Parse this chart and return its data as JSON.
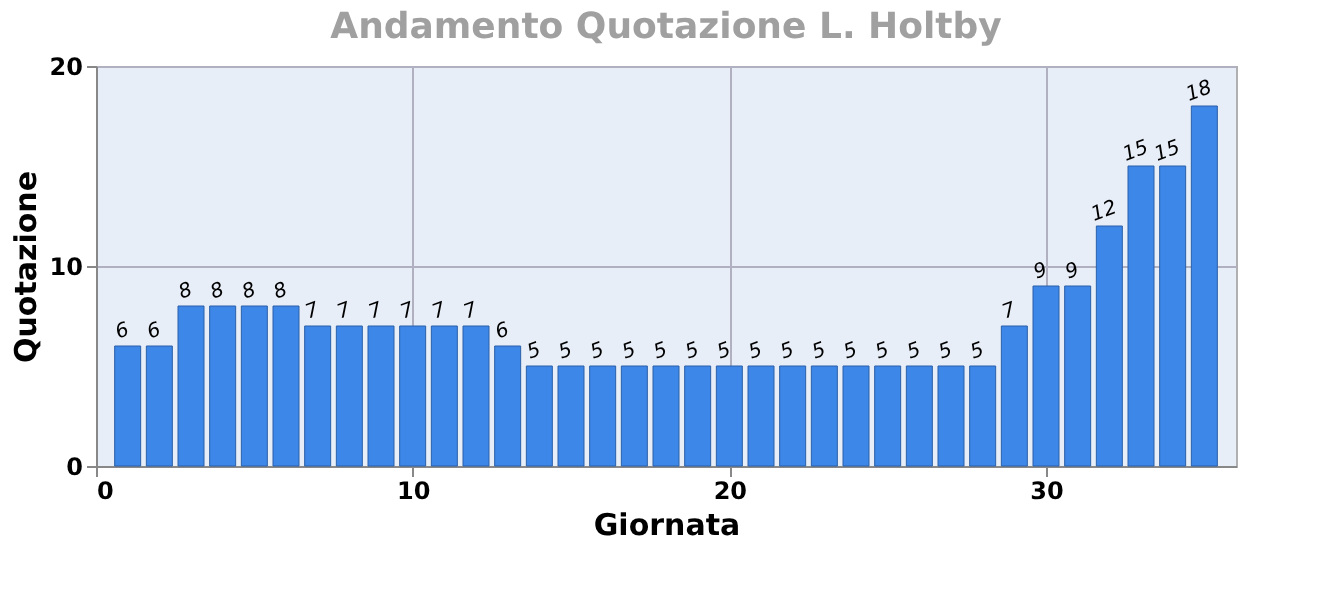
{
  "chart_data": {
    "type": "bar",
    "title": "Andamento Quotazione L. Holtby",
    "xlabel": "Giornata",
    "ylabel": "Quotazione",
    "x": [
      1,
      2,
      3,
      4,
      5,
      6,
      7,
      8,
      9,
      10,
      11,
      12,
      13,
      14,
      15,
      16,
      17,
      18,
      19,
      20,
      21,
      22,
      23,
      24,
      25,
      26,
      27,
      28,
      29,
      30,
      31,
      32,
      33,
      34,
      35
    ],
    "values": [
      6,
      6,
      8,
      8,
      8,
      8,
      7,
      7,
      7,
      7,
      7,
      7,
      6,
      5,
      5,
      5,
      5,
      5,
      5,
      5,
      5,
      5,
      5,
      5,
      5,
      5,
      5,
      5,
      7,
      9,
      9,
      12,
      15,
      15,
      18
    ],
    "color": "#3d87e8",
    "data_labels": true,
    "grid": true,
    "xlim": [
      0,
      36
    ],
    "xticks": [
      0,
      10,
      20,
      30
    ],
    "ylim": [
      0,
      20
    ],
    "yticks": [
      0,
      10,
      20
    ]
  }
}
